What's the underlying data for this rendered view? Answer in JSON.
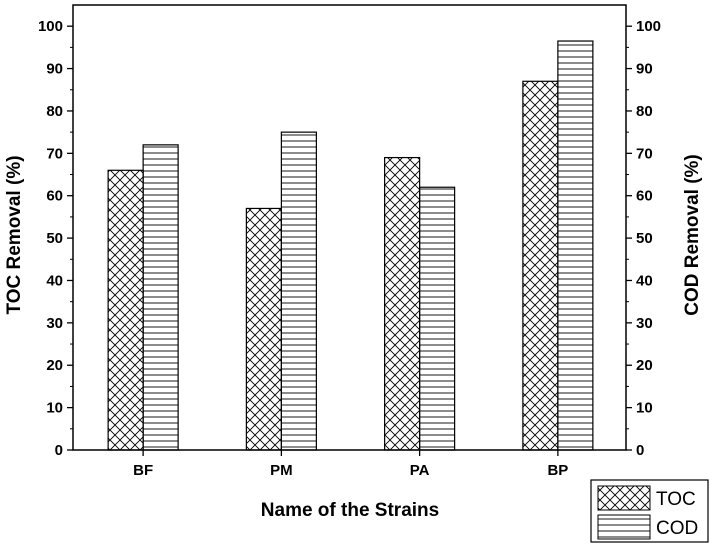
{
  "chart_data": {
    "type": "bar",
    "categories": [
      "BF",
      "PM",
      "PA",
      "BP"
    ],
    "series": [
      {
        "name": "TOC",
        "values": [
          66,
          57,
          69,
          87
        ],
        "pattern": "crosshatch"
      },
      {
        "name": "COD",
        "values": [
          72,
          75,
          62,
          96.5
        ],
        "pattern": "horizontal"
      }
    ],
    "xlabel": "Name of the Strains",
    "ylabel": "TOC Removal (%)",
    "y2label": "COD Removal (%)",
    "ylim": [
      0,
      105
    ],
    "yticks": [
      0,
      10,
      20,
      30,
      40,
      50,
      60,
      70,
      80,
      90,
      100
    ],
    "legend_position": "bottom-right",
    "grid": false
  }
}
